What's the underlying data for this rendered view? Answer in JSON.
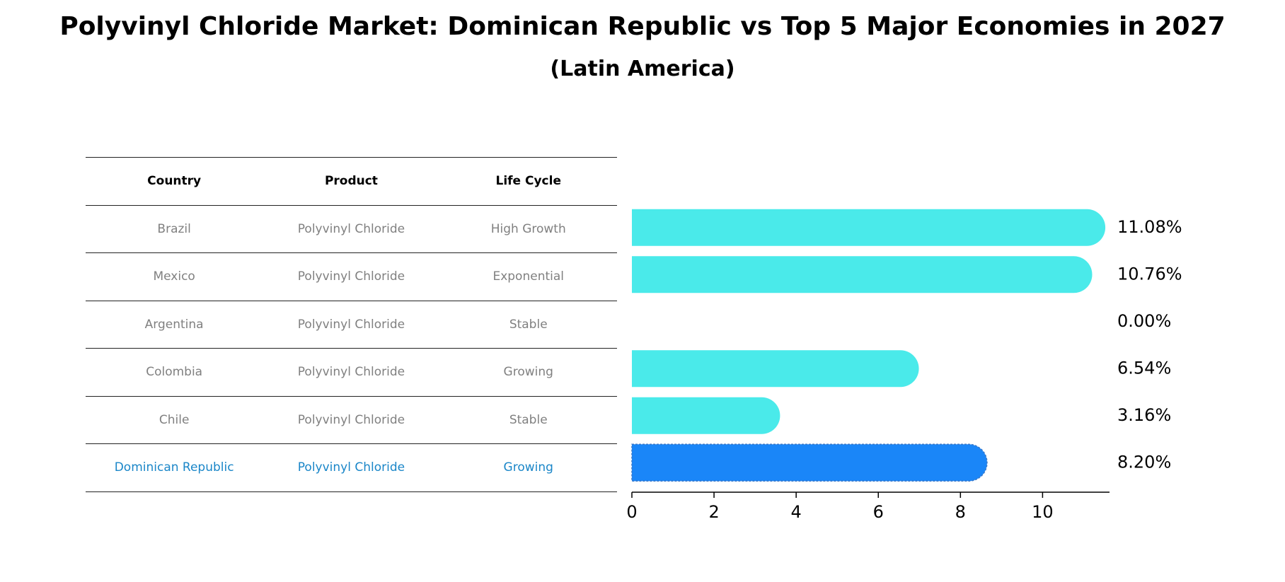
{
  "title": "Polyvinyl Chloride Market: Dominican Republic vs Top 5 Major Economies in 2027",
  "subtitle": "(Latin America)",
  "table": {
    "headers": [
      "Country",
      "Product",
      "Life Cycle"
    ],
    "rows": [
      {
        "country": "Brazil",
        "product": "Polyvinyl Chloride",
        "life_cycle": "High Growth"
      },
      {
        "country": "Mexico",
        "product": "Polyvinyl Chloride",
        "life_cycle": "Exponential"
      },
      {
        "country": "Argentina",
        "product": "Polyvinyl Chloride",
        "life_cycle": "Stable"
      },
      {
        "country": "Colombia",
        "product": "Polyvinyl Chloride",
        "life_cycle": "Growing"
      },
      {
        "country": "Chile",
        "product": "Polyvinyl Chloride",
        "life_cycle": "Stable"
      },
      {
        "country": "Dominican Republic",
        "product": "Polyvinyl Chloride",
        "life_cycle": "Growing"
      }
    ]
  },
  "colors": {
    "bar": "#4aeaea",
    "highlight_bar": "#1a86f8",
    "highlight_text": "#1a86c8",
    "muted_text": "#808080"
  },
  "chart_data": {
    "type": "bar",
    "orientation": "horizontal",
    "categories": [
      "Brazil",
      "Mexico",
      "Argentina",
      "Colombia",
      "Chile",
      "Dominican Republic"
    ],
    "values": [
      11.08,
      10.76,
      0.0,
      6.54,
      3.16,
      8.2
    ],
    "value_labels": [
      "11.08%",
      "10.76%",
      "0.00%",
      "6.54%",
      "3.16%",
      "8.20%"
    ],
    "highlight": "Dominican Republic",
    "xlim": [
      0,
      11.63
    ],
    "xticks": [
      0,
      2,
      4,
      6,
      8,
      10
    ],
    "xlabel": "",
    "ylabel": "",
    "grid": false
  }
}
